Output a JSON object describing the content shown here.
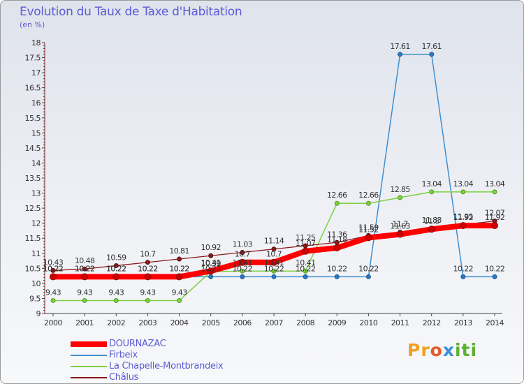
{
  "title": "Evolution du Taux de Taxe d'Habitation",
  "subtitle": "(en %)",
  "logo": [
    "Pr",
    "o",
    "x",
    "iti"
  ],
  "chart_data": {
    "type": "line",
    "title": "Evolution du Taux de Taxe d'Habitation",
    "subtitle": "(en %)",
    "xlabel": "",
    "ylabel": "",
    "x": [
      "2000",
      "2001",
      "2002",
      "2003",
      "2004",
      "2005",
      "2006",
      "2007",
      "2008",
      "2009",
      "2010",
      "2011",
      "2012",
      "2013",
      "2014"
    ],
    "ylim": [
      9,
      18
    ],
    "yticks": [
      9,
      9.5,
      10,
      10.5,
      11,
      11.5,
      12,
      12.5,
      13,
      13.5,
      14,
      14.5,
      15,
      15.5,
      16,
      16.5,
      17,
      17.5,
      18
    ],
    "grid": false,
    "legend_position": "bottom",
    "series": [
      {
        "name": "DOURNAZAC",
        "color": "#ff0000",
        "values": [
          10.22,
          10.22,
          10.22,
          10.22,
          10.22,
          10.41,
          10.7,
          10.7,
          11.07,
          11.18,
          11.52,
          11.63,
          11.8,
          11.92,
          11.92
        ],
        "labels": [
          "10.22",
          "10.22",
          "10.22",
          "10.22",
          "10.22",
          "10.41",
          "10.7",
          "10.7",
          "11.07",
          "11.18",
          "11.52",
          "11.63",
          "11.8",
          "11.92",
          "11.92"
        ]
      },
      {
        "name": "Firbeix",
        "color": "#3e8fd0",
        "values": [
          10.22,
          10.22,
          10.22,
          10.22,
          10.22,
          10.22,
          10.22,
          10.22,
          10.22,
          10.22,
          10.22,
          17.61,
          17.61,
          10.22,
          10.22
        ],
        "labels": [
          "10.22",
          "10.22",
          "10.22",
          "10.22",
          "10.22",
          "10.22",
          "10.22",
          "10.22",
          "10.22",
          "10.22",
          "10.22",
          "17.61",
          "17.61",
          "10.22",
          "10.22"
        ]
      },
      {
        "name": "La Chapelle-Montbrandeix",
        "color": "#7fd140",
        "values": [
          9.43,
          9.43,
          9.43,
          9.43,
          9.43,
          10.39,
          10.41,
          10.41,
          10.41,
          12.66,
          12.66,
          12.85,
          13.04,
          13.04,
          13.04
        ],
        "labels": [
          "9.43",
          "9.43",
          "9.43",
          "9.43",
          "9.43",
          "10.39",
          "10.41",
          "10.41",
          "10.41",
          "12.66",
          "12.66",
          "12.85",
          "13.04",
          "13.04",
          "13.04"
        ]
      },
      {
        "name": "Châlus",
        "color": "#8b1a1a",
        "values": [
          10.43,
          10.48,
          10.59,
          10.7,
          10.81,
          10.92,
          11.03,
          11.14,
          11.25,
          11.36,
          11.59,
          11.7,
          11.83,
          11.95,
          12.07
        ],
        "labels": [
          "10.43",
          "10.48",
          "10.59",
          "10.7",
          "10.81",
          "10.92",
          "11.03",
          "11.14",
          "11.25",
          "11.36",
          "11.59",
          "11.7",
          "11.83",
          "11.95",
          "12.07"
        ]
      }
    ]
  }
}
